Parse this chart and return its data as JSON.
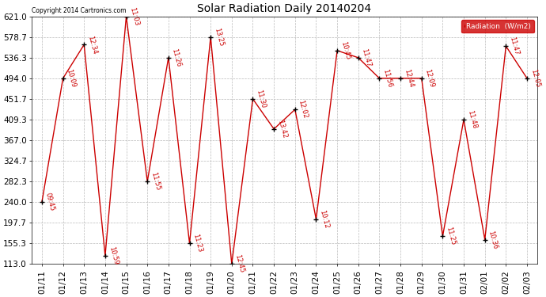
{
  "title": "Solar Radiation Daily 20140204",
  "copyright": "Copyright 2014 Cartronics.com",
  "legend_label": "Radiation  (W/m2)",
  "legend_bg": "#cc0000",
  "legend_text_color": "#ffffff",
  "ylim": [
    113.0,
    621.0
  ],
  "yticks": [
    113.0,
    155.3,
    197.7,
    240.0,
    282.3,
    324.7,
    367.0,
    409.3,
    451.7,
    494.0,
    536.3,
    578.7,
    621.0
  ],
  "dates": [
    "01/11",
    "01/12",
    "01/13",
    "01/14",
    "01/15",
    "01/16",
    "01/17",
    "01/18",
    "01/19",
    "01/20",
    "01/21",
    "01/22",
    "01/23",
    "01/24",
    "01/25",
    "01/26",
    "01/27",
    "01/28",
    "01/29",
    "01/30",
    "01/31",
    "02/01",
    "02/02",
    "02/03"
  ],
  "values": [
    240.0,
    494.0,
    563.0,
    130.0,
    621.0,
    282.3,
    536.3,
    155.3,
    578.7,
    113.0,
    451.7,
    390.0,
    430.0,
    205.0,
    551.0,
    536.3,
    494.0,
    494.0,
    494.0,
    170.0,
    409.3,
    163.0,
    560.0,
    494.0
  ],
  "labels": [
    "09:45",
    "10:09",
    "12:34",
    "10:59",
    "11:03",
    "11:55",
    "11:26",
    "11:23",
    "13:25",
    "12:45",
    "11:30",
    "13:42",
    "12:02",
    "10:12",
    "10:45",
    "11:47",
    "11:56",
    "12:44",
    "12:09",
    "11:25",
    "11:48",
    "10:36",
    "11:47",
    "12:05"
  ],
  "line_color": "#cc0000",
  "marker_color": "#000000",
  "label_color": "#cc0000",
  "bg_color": "#ffffff",
  "grid_color": "#bbbbbb"
}
